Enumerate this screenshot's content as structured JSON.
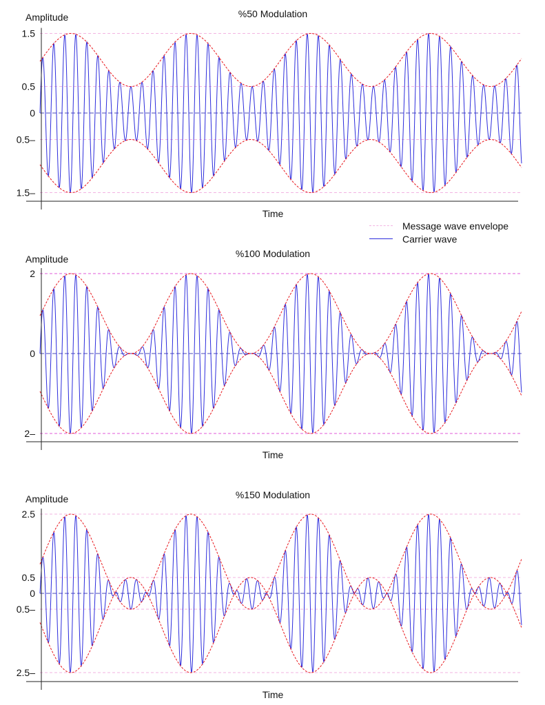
{
  "legend": {
    "envelope_label": "Message wave envelope",
    "carrier_label": "Carrier wave"
  },
  "colors": {
    "carrier": "#2b2bdc",
    "envelope": "#e8141a",
    "guide_pink": "#f2b3e2",
    "guide_blue": "#4a4ab8",
    "axis": "#222222"
  },
  "chart_data": [
    {
      "type": "line",
      "title": "%50 Modulation",
      "xlabel": "Time",
      "ylabel": "Amplitude",
      "modulation_index": 0.5,
      "ylim": [
        -1.5,
        1.5
      ],
      "yticks": [
        {
          "value": 1.5,
          "label": "1.5"
        },
        {
          "value": 0.5,
          "label": "0.5"
        },
        {
          "value": 0,
          "label": "0"
        },
        {
          "value": -0.5,
          "label": "0.5–"
        },
        {
          "value": -1.5,
          "label": "1.5–"
        }
      ],
      "series": [
        {
          "name": "Message wave envelope",
          "amplitude_max": 1.5,
          "amplitude_min": 0.5
        },
        {
          "name": "Carrier wave",
          "peak": 1.5
        }
      ]
    },
    {
      "type": "line",
      "title": "%100 Modulation",
      "xlabel": "Time",
      "ylabel": "Amplitude",
      "modulation_index": 1.0,
      "ylim": [
        -2,
        2
      ],
      "yticks": [
        {
          "value": 2,
          "label": "2"
        },
        {
          "value": 0,
          "label": "0"
        },
        {
          "value": -2,
          "label": "2–"
        }
      ],
      "series": [
        {
          "name": "Message wave envelope",
          "amplitude_max": 2,
          "amplitude_min": 0
        },
        {
          "name": "Carrier wave",
          "peak": 2
        }
      ]
    },
    {
      "type": "line",
      "title": "%150 Modulation",
      "xlabel": "Time",
      "ylabel": "Amplitude",
      "modulation_index": 1.5,
      "ylim": [
        -2.5,
        2.5
      ],
      "yticks": [
        {
          "value": 2.5,
          "label": "2.5"
        },
        {
          "value": 0.5,
          "label": "0.5"
        },
        {
          "value": 0,
          "label": "0"
        },
        {
          "value": -0.5,
          "label": "0.5–"
        },
        {
          "value": -2.5,
          "label": "2.5–"
        }
      ],
      "series": [
        {
          "name": "Message wave envelope",
          "amplitude_max": 2.5,
          "amplitude_min": 0.5
        },
        {
          "name": "Carrier wave",
          "peak": 2.5
        }
      ]
    }
  ]
}
